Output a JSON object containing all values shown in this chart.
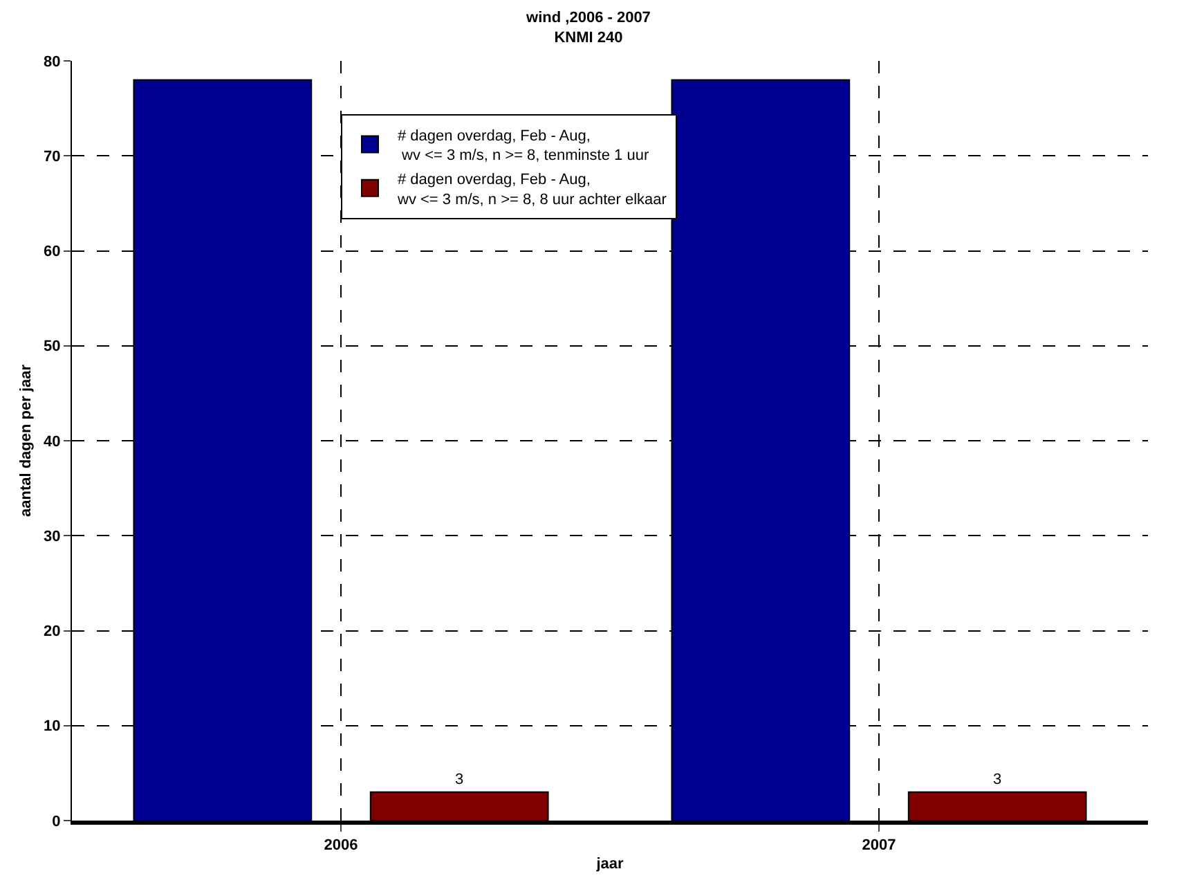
{
  "chart_data": {
    "type": "bar",
    "title": "wind ,2006 - 2007\nKNMI 240",
    "xlabel": "jaar",
    "ylabel": "aantal dagen per jaar",
    "categories": [
      "2006",
      "2007"
    ],
    "series": [
      {
        "name": "# dagen overdag, Feb - Aug,\n wv <= 3 m/s, n >= 8, tenminste 1 uur",
        "color": "#000090",
        "values": [
          78,
          78
        ]
      },
      {
        "name": "# dagen overdag, Feb - Aug,\nwv <= 3 m/s, n >= 8, 8 uur achter elkaar",
        "color": "#800000",
        "values": [
          3,
          3
        ],
        "value_labels": [
          "3",
          "3"
        ]
      }
    ],
    "ylim": [
      0,
      80
    ],
    "yticks": [
      0,
      10,
      20,
      30,
      40,
      50,
      60,
      70,
      80
    ],
    "grid": true,
    "legend": "top"
  }
}
